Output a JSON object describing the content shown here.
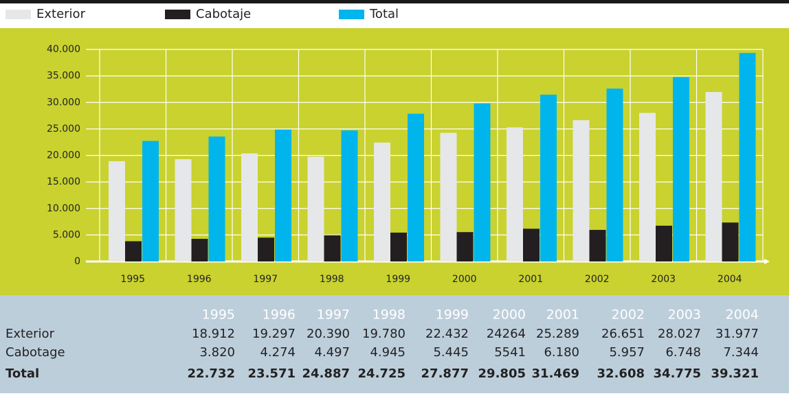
{
  "chart_data": {
    "type": "bar",
    "categories": [
      "1995",
      "1996",
      "1997",
      "1998",
      "1999",
      "2000",
      "2001",
      "2002",
      "2003",
      "2004"
    ],
    "series": [
      {
        "name": "Exterior",
        "color": "#e6e7e9",
        "values": [
          18912,
          19297,
          20390,
          19780,
          22432,
          24264,
          25289,
          26651,
          28027,
          31977
        ]
      },
      {
        "name": "Cabotaje",
        "color": "#231f20",
        "values": [
          3820,
          4274,
          4497,
          4945,
          5445,
          5541,
          6180,
          5957,
          6748,
          7344
        ]
      },
      {
        "name": "Total",
        "color": "#00b5ec",
        "values": [
          22732,
          23571,
          24887,
          24725,
          27877,
          29805,
          31469,
          32608,
          34775,
          39321
        ]
      }
    ],
    "ylim": [
      0,
      40000
    ],
    "yticks": [
      0,
      {
        "value": 5000,
        "label": "5.000"
      },
      {
        "value": 10000,
        "label": "10.000"
      },
      {
        "value": 15000,
        "label": "15.000"
      },
      {
        "value": 20000,
        "label": "20.000"
      },
      {
        "value": 25000,
        "label": "25.000"
      },
      {
        "value": 30000,
        "label": "30.000"
      },
      {
        "value": 35000,
        "label": "35.000"
      },
      {
        "value": 40000,
        "label": "40.000"
      }
    ],
    "grid": true
  },
  "table": {
    "rows": [
      {
        "label": "Exterior",
        "cells": [
          "18.912",
          "19.297",
          "20.390",
          "19.780",
          "22.432",
          "24264",
          "25.289",
          "26.651",
          "28.027",
          "31.977"
        ]
      },
      {
        "label": "Cabotage",
        "cells": [
          "3.820",
          "4.274",
          "4.497",
          "4.945",
          "5.445",
          "5541",
          "6.180",
          "5.957",
          "6.748",
          "7.344"
        ]
      },
      {
        "label": "Total",
        "cells": [
          "22.732",
          "23.571",
          "24.887",
          "24.725",
          "27.877",
          "29.805",
          "31.469",
          "32.608",
          "34.775",
          "39.321"
        ]
      }
    ]
  }
}
